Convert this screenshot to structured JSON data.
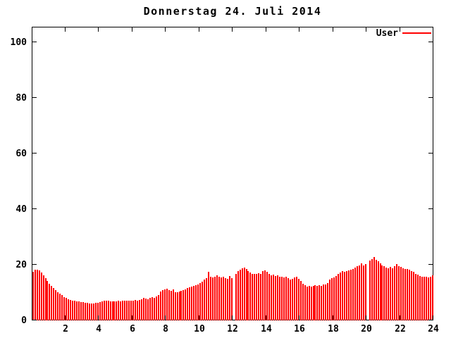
{
  "title": "Donnerstag 24. Juli 2014",
  "legend": {
    "label": "User",
    "color": "#ff0000",
    "position": "top-right-inside"
  },
  "colors": {
    "bar": "#ff0000",
    "axis": "#000000",
    "background": "#ffffff"
  },
  "chart_data": {
    "type": "bar",
    "title": "Donnerstag 24. Juli 2014",
    "xlabel": "",
    "ylabel": "",
    "x_unit": "hour-of-day",
    "x_range_hours": [
      0,
      24
    ],
    "ylim": [
      0,
      105.6
    ],
    "grid": false,
    "tick_style": "inward-mirrored-frame",
    "x_tick_labels": [
      "2",
      "4",
      "6",
      "8",
      "10",
      "12",
      "14",
      "16",
      "18",
      "20",
      "22",
      "24"
    ],
    "x_tick_hours": [
      2,
      4,
      6,
      8,
      10,
      12,
      14,
      16,
      18,
      20,
      22,
      24
    ],
    "y_tick_labels": [
      "0",
      "20",
      "40",
      "60",
      "80",
      "100"
    ],
    "y_tick_values": [
      0,
      20,
      40,
      60,
      80,
      100
    ],
    "samples_per_hour": 8,
    "interval_minutes": 7.5,
    "series": [
      {
        "name": "User",
        "color": "#ff0000",
        "values": [
          17.5,
          18.2,
          18.2,
          18.0,
          17.2,
          16.2,
          15.2,
          14.2,
          13.2,
          12.4,
          11.6,
          10.8,
          10.2,
          9.6,
          9.0,
          8.4,
          8.0,
          7.6,
          7.3,
          7.0,
          7.0,
          6.8,
          6.8,
          6.6,
          6.6,
          6.4,
          6.4,
          6.2,
          6.2,
          6.2,
          6.4,
          6.4,
          6.6,
          6.8,
          7.0,
          7.2,
          7.0,
          6.8,
          6.8,
          6.8,
          6.8,
          7.0,
          6.8,
          7.0,
          7.0,
          7.2,
          7.0,
          7.0,
          7.2,
          7.4,
          7.2,
          7.4,
          7.6,
          8.2,
          7.8,
          7.6,
          8.0,
          8.4,
          8.2,
          8.6,
          9.0,
          10.4,
          11.0,
          11.2,
          11.4,
          11.0,
          10.6,
          11.2,
          10.2,
          10.0,
          10.4,
          10.6,
          10.8,
          11.2,
          11.6,
          11.9,
          12.2,
          12.4,
          12.7,
          13.0,
          13.4,
          14.0,
          14.6,
          15.2,
          17.4,
          15.8,
          15.4,
          15.8,
          16.2,
          15.8,
          15.4,
          15.6,
          15.2,
          15.0,
          16.0,
          15.2,
          null,
          16.8,
          17.6,
          18.2,
          18.7,
          18.9,
          18.4,
          17.8,
          17.2,
          16.8,
          16.6,
          16.8,
          17.0,
          16.6,
          17.6,
          18.0,
          17.4,
          16.6,
          16.2,
          16.4,
          16.0,
          16.2,
          15.8,
          15.6,
          15.4,
          15.8,
          15.2,
          14.6,
          15.0,
          15.4,
          15.6,
          15.0,
          14.2,
          13.2,
          12.6,
          12.2,
          12.4,
          12.2,
          12.4,
          12.6,
          12.4,
          12.6,
          12.4,
          12.8,
          13.0,
          13.4,
          14.6,
          15.2,
          15.4,
          16.0,
          16.6,
          17.2,
          17.6,
          17.4,
          17.8,
          18.0,
          18.2,
          18.6,
          19.0,
          19.4,
          19.8,
          20.4,
          19.8,
          20.2,
          null,
          21.4,
          22.0,
          22.8,
          21.8,
          21.2,
          20.4,
          19.8,
          19.4,
          19.0,
          18.8,
          19.2,
          18.8,
          19.4,
          20.3,
          19.6,
          19.2,
          18.8,
          18.4,
          18.6,
          18.2,
          17.8,
          17.4,
          16.8,
          16.4,
          16.0,
          15.8,
          15.6,
          15.6,
          15.4,
          15.8,
          16.2
        ]
      }
    ]
  }
}
